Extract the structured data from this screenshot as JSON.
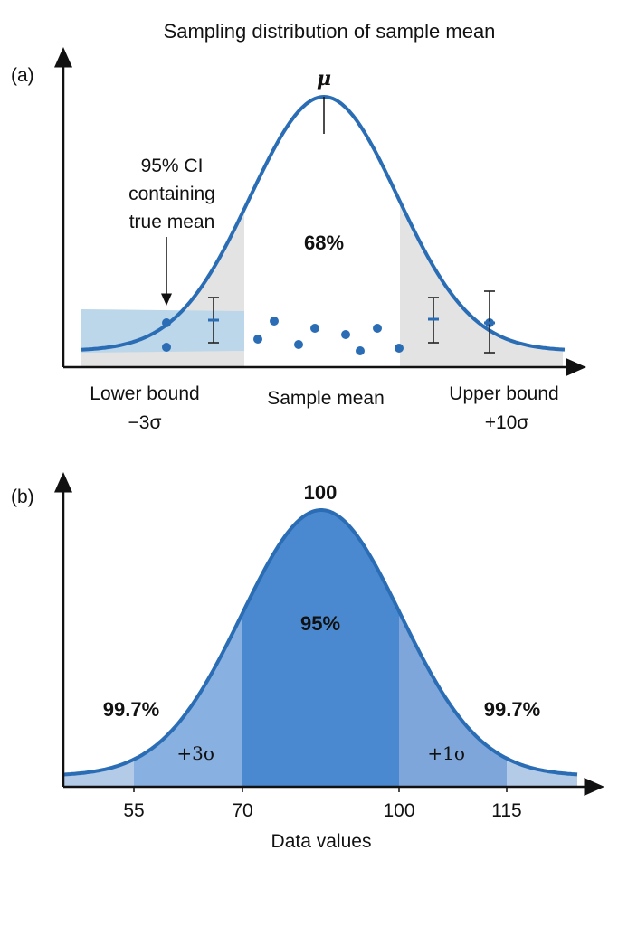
{
  "title": "Sampling distribution of sample mean",
  "colors": {
    "curve": "#2a6db5",
    "gray_region": "#e3e3e3",
    "ci_band": "#bcd6ea",
    "dot": "#2a6db5",
    "b_tail": "#b4cbe8",
    "b_mid": "#88b0e0",
    "b_center": "#4a89cf",
    "b_right_mid": "#7ea6da"
  },
  "chart_data": [
    {
      "type": "area",
      "panel_label": "(a)",
      "peak_label": "μ",
      "center_label": "68%",
      "annotation": [
        "95% CI",
        "containing",
        "true mean"
      ],
      "lower_label": [
        "Lower bound",
        "−3σ"
      ],
      "center_axis_label": "Sample mean",
      "upper_label": [
        "Upper bound",
        "+10σ"
      ],
      "shaded_regions": [
        "left tail (gray)",
        "right tail (gray)"
      ],
      "sample_points": 11,
      "error_bars": 3
    },
    {
      "type": "area",
      "panel_label": "(b)",
      "peak_label": "100",
      "center_label": "95%",
      "left_label": "99.7%",
      "right_label": "99.7%",
      "left_sigma_label": "+3σ",
      "right_sigma_label": "+1σ",
      "xlabel": "Data values",
      "x_ticks": [
        "55",
        "70",
        "100",
        "115"
      ]
    }
  ]
}
